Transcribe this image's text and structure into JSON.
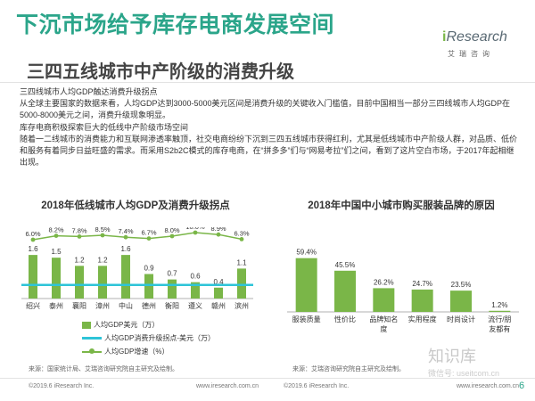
{
  "header": {
    "title": "下沉市场给予库存电商发展空间",
    "subtitle": "三四五线城市中产阶级的消费升级",
    "logo": {
      "mark": "i",
      "name": "Research",
      "sub": "艾瑞咨询"
    }
  },
  "body": {
    "heading1": "三四线城市人均GDP触达消费升级拐点",
    "para1": "从全球主要国家的数据来看，人均GDP达到3000-5000美元区间是消费升级的关键收入门槛值，目前中国相当一部分三四线城市人均GDP在5000-8000美元之间，消费升级现象明显。",
    "heading2": "库存电商积极探索巨大的低线中产阶级市场空间",
    "para2": "随着一二线城市的消费能力和互联网渗透率触顶，社交电商纷纷下沉到三四五线城市获得红利，尤其是低线城市中产阶级人群，对品质、低价和服务有着同步日益旺盛的需求。而采用S2b2C模式的库存电商，在“拼多多”们与“网易考拉”们之间，看到了这片空白市场，于2017年起相继出现。"
  },
  "chart1": {
    "title": "2018年低线城市人均GDP及消费升级拐点",
    "legend": {
      "bar": "人均GDP美元（万）",
      "threshold": "人均GDP消费升级拐点-美元（万）",
      "growth": "人均GDP增速（%）"
    },
    "source": "来源：国家统计局、艾瑞咨询研究院自主研究及绘制。"
  },
  "chart2": {
    "title": "2018年中国中小城市购买服装品牌的原因",
    "source": "来源：艾瑞咨询研究院自主研究及绘制。"
  },
  "footer": {
    "copy1": "©2019.6 iResearch Inc.",
    "url1": "www.iresearch.com.cn",
    "copy2": "©2019.6 iResearch Inc.",
    "url2": "www.iresearch.com.cn",
    "page": "6"
  },
  "watermark": {
    "line1": "知识库",
    "line2": "微信号: useitcom.cn"
  },
  "colors": {
    "green": "#7ab648",
    "teal": "#2ba58a",
    "cyan": "#2ec4d8"
  },
  "chart_data": [
    {
      "type": "bar",
      "title": "2018年低线城市人均GDP及消费升级拐点",
      "categories": [
        "绍兴",
        "泰州",
        "襄阳",
        "漳州",
        "中山",
        "德州",
        "衡阳",
        "遵义",
        "赣州",
        "滨州"
      ],
      "series": [
        {
          "name": "人均GDP美元（万）",
          "type": "bar",
          "values": [
            1.6,
            1.5,
            1.2,
            1.2,
            1.6,
            0.9,
            0.7,
            0.6,
            0.4,
            1.1
          ]
        },
        {
          "name": "人均GDP增速（%）",
          "type": "line",
          "values": [
            6.0,
            8.2,
            7.8,
            8.5,
            7.4,
            6.7,
            8.0,
            10.0,
            8.9,
            6.3
          ]
        },
        {
          "name": "人均GDP消费升级拐点-美元（万）",
          "type": "line",
          "values": [
            0.5,
            0.5,
            0.5,
            0.5,
            0.5,
            0.5,
            0.5,
            0.5,
            0.5,
            0.5
          ]
        }
      ],
      "bar_labels": [
        "1.6",
        "1.5",
        "1.2",
        "1.2",
        "1.6",
        "0.9",
        "0.7",
        "0.6",
        "0.4",
        "1.1"
      ],
      "growth_labels": [
        "6.0%",
        "8.2%",
        "7.8%",
        "8.5%",
        "7.4%",
        "6.7%",
        "8.0%",
        "10.0%",
        "8.9%",
        "6.3%"
      ],
      "ylim": [
        0,
        1.8
      ]
    },
    {
      "type": "bar",
      "title": "2018年中国中小城市购买服装品牌的原因",
      "categories": [
        "服装质量",
        "性价比",
        "品牌知名度",
        "实用程度",
        "时尚设计",
        "流行/朋友都有"
      ],
      "values": [
        59.4,
        45.5,
        26.2,
        24.7,
        23.5,
        1.2
      ],
      "value_labels": [
        "59.4%",
        "45.5%",
        "26.2%",
        "24.7%",
        "23.5%",
        "1.2%"
      ],
      "ylim": [
        0,
        65
      ]
    }
  ]
}
